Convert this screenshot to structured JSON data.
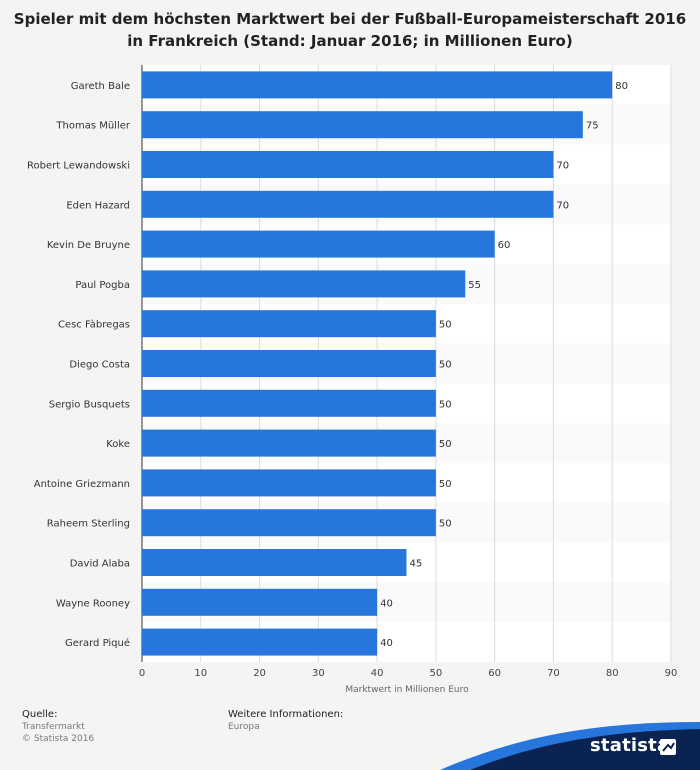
{
  "title_lines": [
    "Spieler mit dem höchsten Marktwert bei der Fußball-Europameisterschaft 2016",
    "in Frankreich (Stand: Januar 2016; in Millionen Euro)"
  ],
  "footer": {
    "source_label": "Quelle:",
    "source_lines": [
      "Transfermarkt",
      "© Statista 2016"
    ],
    "info_label": "Weitere Informationen:",
    "info_lines": [
      "Europa"
    ],
    "brand": "statista"
  },
  "colors": {
    "bar": "#2776dc",
    "stripe": "#fafafa",
    "background": "#f4f4f4",
    "brand": "#0b2350",
    "wave": "#2776dc"
  },
  "chart_data": {
    "type": "bar",
    "orientation": "horizontal",
    "categories": [
      "Gareth Bale",
      "Thomas Müller",
      "Robert Lewandowski",
      "Eden Hazard",
      "Kevin De Bruyne",
      "Paul Pogba",
      "Cesc Fàbregas",
      "Diego Costa",
      "Sergio Busquets",
      "Koke",
      "Antoine Griezmann",
      "Raheem Sterling",
      "David Alaba",
      "Wayne Rooney",
      "Gerard Piqué"
    ],
    "values": [
      80,
      75,
      70,
      70,
      60,
      55,
      50,
      50,
      50,
      50,
      50,
      50,
      45,
      40,
      40
    ],
    "xlabel": "Marktwert in Millionen Euro",
    "xlim": [
      0,
      90
    ],
    "xticks": [
      0,
      10,
      20,
      30,
      40,
      50,
      60,
      70,
      80,
      90
    ],
    "grid": true,
    "data_labels": true
  }
}
